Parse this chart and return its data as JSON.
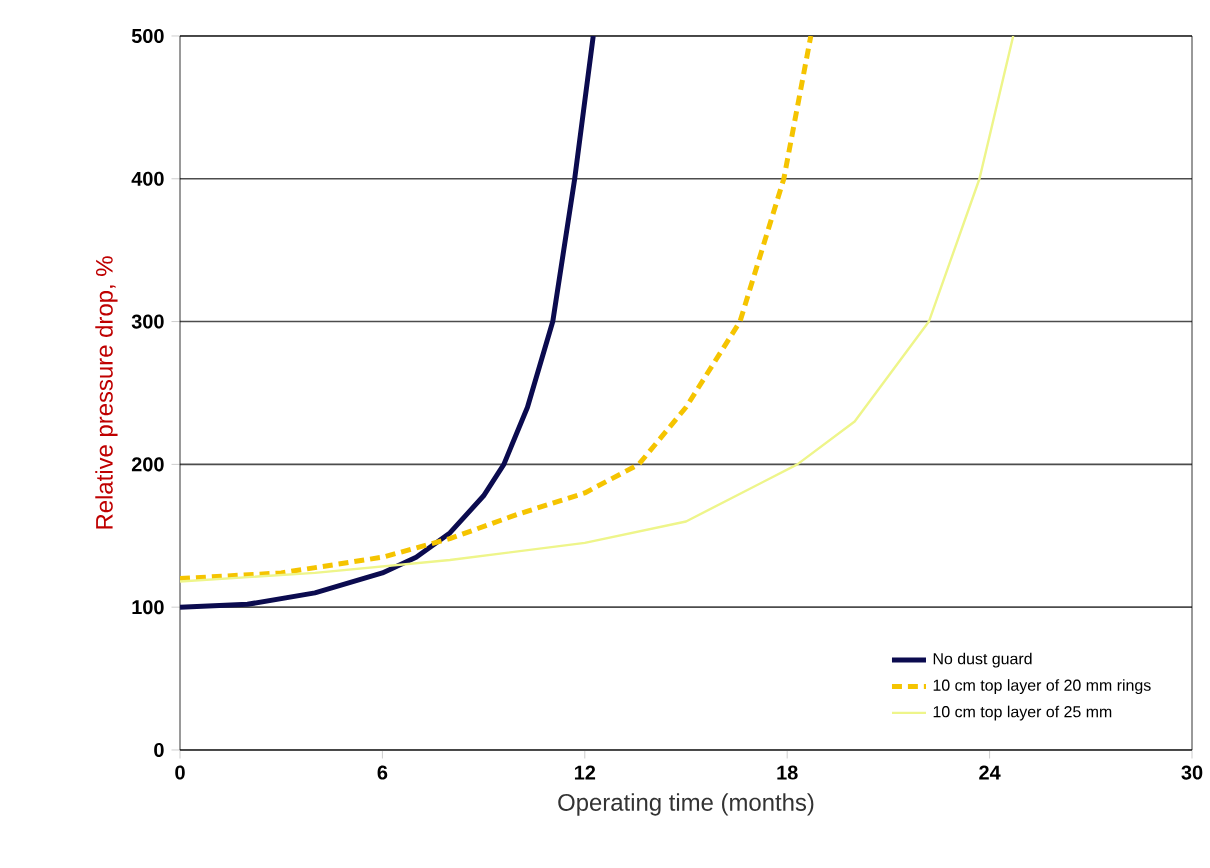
{
  "chart_data": {
    "type": "line",
    "xlabel": "Operating time (months)",
    "ylabel": "Relative pressure drop, %",
    "xlim": [
      0,
      30
    ],
    "xticks": [
      0,
      6,
      12,
      18,
      24,
      30
    ],
    "ylim": [
      0,
      500
    ],
    "yticks": [
      0,
      100,
      200,
      300,
      400,
      500
    ],
    "grid": "y",
    "legend": "bottom right",
    "marker": "none",
    "series": [
      {
        "name": "No dust guard",
        "color": "#0b0b4f",
        "line_style": "solid",
        "x": [
          0,
          2,
          4,
          6,
          7,
          8,
          9,
          9.6,
          10.3,
          11.05,
          11.7,
          12.25
        ],
        "values": [
          100,
          102,
          110,
          124,
          135,
          152,
          178,
          200,
          240,
          300,
          400,
          500
        ]
      },
      {
        "name": "10 cm top layer of 20 mm rings",
        "color": "#f5c400",
        "line_style": "dashed",
        "x": [
          0,
          3,
          6,
          8,
          10,
          12,
          13.6,
          15,
          16.6,
          17.9,
          18.7
        ],
        "values": [
          120,
          124,
          135,
          148,
          165,
          180,
          200,
          240,
          300,
          400,
          500
        ]
      },
      {
        "name": "10 cm top layer of 25 mm",
        "color": "#eef58a",
        "line_style": "solid",
        "x": [
          0,
          4,
          8,
          12,
          15,
          18.3,
          20,
          22.2,
          23.7,
          24.7
        ],
        "values": [
          118,
          124,
          133,
          145,
          160,
          200,
          230,
          300,
          400,
          500
        ]
      }
    ]
  }
}
